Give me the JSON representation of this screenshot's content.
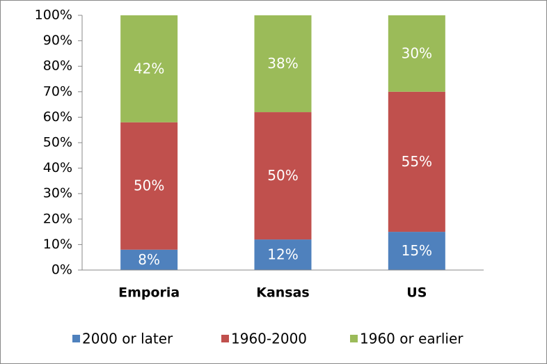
{
  "chart_data": {
    "type": "stacked_bar",
    "categories": [
      "Emporia",
      "Kansas",
      "US"
    ],
    "series": [
      {
        "name": "2000 or later",
        "color": "#4f81bd",
        "values": [
          8,
          12,
          15
        ],
        "value_labels": [
          "8%",
          "12%",
          "15%"
        ]
      },
      {
        "name": "1960-2000",
        "color": "#c0504d",
        "values": [
          50,
          50,
          55
        ],
        "value_labels": [
          "50%",
          "50%",
          "55%"
        ]
      },
      {
        "name": "1960 or earlier",
        "color": "#9bbb59",
        "values": [
          42,
          38,
          30
        ],
        "value_labels": [
          "42%",
          "38%",
          "30%"
        ]
      }
    ],
    "ylim": [
      0,
      100
    ],
    "yticks": [
      {
        "value": 0,
        "label": "0%"
      },
      {
        "value": 10,
        "label": "10%"
      },
      {
        "value": 20,
        "label": "20%"
      },
      {
        "value": 30,
        "label": "30%"
      },
      {
        "value": 40,
        "label": "40%"
      },
      {
        "value": 50,
        "label": "50%"
      },
      {
        "value": 60,
        "label": "60%"
      },
      {
        "value": 70,
        "label": "70%"
      },
      {
        "value": 80,
        "label": "80%"
      },
      {
        "value": 90,
        "label": "90%"
      },
      {
        "value": 100,
        "label": "100%"
      }
    ],
    "grid": false,
    "legend": "bottom"
  }
}
